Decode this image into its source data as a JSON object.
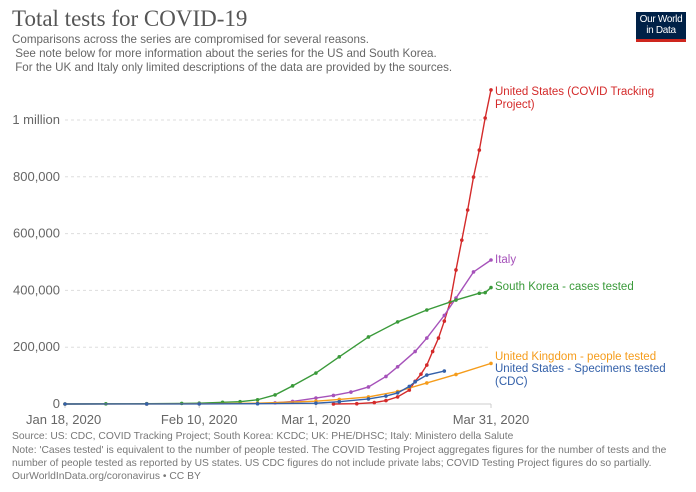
{
  "header": {
    "title": "Total tests for COVID-19",
    "subtitle_lines": [
      "Comparisons across the series are compromised for several reasons.",
      " See note below for more information about the series for the US and South Korea.",
      " For the UK and Italy only limited descriptions of the data are provided by the sources."
    ],
    "logo_text": "Our World in Data"
  },
  "footer": {
    "source": "Source: US: CDC, COVID Tracking Project; South Korea: KCDC; UK: PHE/DHSC; Italy: Ministero della Salute",
    "note_line1": "Note: 'Cases tested' is equivalent to the number of people tested. The COVID Testing Project aggregates figures for the number of tests and the",
    "note_line2": "number of people tested as reported by US states. US CDC figures do not include private labs; COVID Testing Project figures do so partially.",
    "credit": "OurWorldInData.org/coronavirus • CC BY"
  },
  "chart_data": {
    "type": "line",
    "title": "Total tests for COVID-19",
    "xlim": [
      "2020-01-18",
      "2020-03-31"
    ],
    "ylim": [
      0,
      1100000
    ],
    "x_ticks": [
      {
        "date": "2020-01-18",
        "label": "Jan 18, 2020"
      },
      {
        "date": "2020-02-10",
        "label": "Feb 10, 2020"
      },
      {
        "date": "2020-03-01",
        "label": "Mar 1, 2020"
      },
      {
        "date": "2020-03-31",
        "label": "Mar 31, 2020"
      }
    ],
    "y_ticks": [
      {
        "value": 0,
        "label": "0"
      },
      {
        "value": 200000,
        "label": "200,000"
      },
      {
        "value": 400000,
        "label": "400,000"
      },
      {
        "value": 600000,
        "label": "600,000"
      },
      {
        "value": 800000,
        "label": "800,000"
      },
      {
        "value": 1000000,
        "label": "1 million"
      }
    ],
    "grid": "horizontal dashed",
    "legend": "inline labels at line ends",
    "series": [
      {
        "name": "United States (COVID Tracking Project)",
        "label_lines": [
          "United States (COVID Tracking",
          "Project)"
        ],
        "color": "#d42a2a",
        "points": [
          [
            "2020-03-04",
            0
          ],
          [
            "2020-03-08",
            1000
          ],
          [
            "2020-03-11",
            5000
          ],
          [
            "2020-03-13",
            12000
          ],
          [
            "2020-03-15",
            25000
          ],
          [
            "2020-03-17",
            49000
          ],
          [
            "2020-03-18",
            80000
          ],
          [
            "2020-03-19",
            105000
          ],
          [
            "2020-03-20",
            137000
          ],
          [
            "2020-03-21",
            185000
          ],
          [
            "2020-03-22",
            232000
          ],
          [
            "2020-03-23",
            292000
          ],
          [
            "2020-03-24",
            359000
          ],
          [
            "2020-03-25",
            472000
          ],
          [
            "2020-03-26",
            577000
          ],
          [
            "2020-03-27",
            683000
          ],
          [
            "2020-03-28",
            799000
          ],
          [
            "2020-03-29",
            894000
          ],
          [
            "2020-03-30",
            1007000
          ],
          [
            "2020-03-31",
            1106000
          ]
        ]
      },
      {
        "name": "Italy",
        "label_lines": [
          "Italy"
        ],
        "color": "#a652ba",
        "points": [
          [
            "2020-02-23",
            4000
          ],
          [
            "2020-02-26",
            9000
          ],
          [
            "2020-03-01",
            21000
          ],
          [
            "2020-03-04",
            30000
          ],
          [
            "2020-03-07",
            42000
          ],
          [
            "2020-03-10",
            60000
          ],
          [
            "2020-03-13",
            97000
          ],
          [
            "2020-03-15",
            131000
          ],
          [
            "2020-03-18",
            185000
          ],
          [
            "2020-03-20",
            232000
          ],
          [
            "2020-03-23",
            312000
          ],
          [
            "2020-03-25",
            373000
          ],
          [
            "2020-03-28",
            465000
          ],
          [
            "2020-03-31",
            507000
          ]
        ]
      },
      {
        "name": "South Korea - cases tested",
        "label_lines": [
          "South Korea - cases tested"
        ],
        "color": "#3a9a3a",
        "points": [
          [
            "2020-01-18",
            0
          ],
          [
            "2020-01-25",
            500
          ],
          [
            "2020-02-01",
            1000
          ],
          [
            "2020-02-07",
            2000
          ],
          [
            "2020-02-10",
            3000
          ],
          [
            "2020-02-14",
            6000
          ],
          [
            "2020-02-17",
            8000
          ],
          [
            "2020-02-20",
            15000
          ],
          [
            "2020-02-23",
            32000
          ],
          [
            "2020-02-26",
            64000
          ],
          [
            "2020-03-01",
            109000
          ],
          [
            "2020-03-05",
            166000
          ],
          [
            "2020-03-10",
            236000
          ],
          [
            "2020-03-15",
            289000
          ],
          [
            "2020-03-20",
            331000
          ],
          [
            "2020-03-25",
            366000
          ],
          [
            "2020-03-29",
            390000
          ],
          [
            "2020-03-30",
            392000
          ],
          [
            "2020-03-31",
            410000
          ]
        ]
      },
      {
        "name": "United Kingdom - people tested",
        "label_lines": [
          "United Kingdom - people tested"
        ],
        "color": "#f59c1b",
        "points": [
          [
            "2020-01-18",
            0
          ],
          [
            "2020-02-01",
            200
          ],
          [
            "2020-02-10",
            800
          ],
          [
            "2020-02-20",
            3000
          ],
          [
            "2020-03-01",
            10000
          ],
          [
            "2020-03-05",
            16000
          ],
          [
            "2020-03-10",
            25000
          ],
          [
            "2020-03-15",
            44000
          ],
          [
            "2020-03-20",
            74000
          ],
          [
            "2020-03-25",
            104000
          ],
          [
            "2020-03-31",
            143000
          ]
        ]
      },
      {
        "name": "United States - Specimens tested (CDC)",
        "label_lines": [
          "United States - Specimens tested",
          "(CDC)"
        ],
        "color": "#3360a9",
        "points": [
          [
            "2020-01-18",
            0
          ],
          [
            "2020-02-01",
            100
          ],
          [
            "2020-02-10",
            300
          ],
          [
            "2020-02-20",
            1000
          ],
          [
            "2020-03-01",
            3000
          ],
          [
            "2020-03-05",
            8000
          ],
          [
            "2020-03-10",
            18000
          ],
          [
            "2020-03-13",
            28000
          ],
          [
            "2020-03-15",
            39000
          ],
          [
            "2020-03-17",
            62000
          ],
          [
            "2020-03-18",
            78000
          ],
          [
            "2020-03-20",
            102000
          ],
          [
            "2020-03-23",
            116000
          ]
        ]
      }
    ]
  }
}
